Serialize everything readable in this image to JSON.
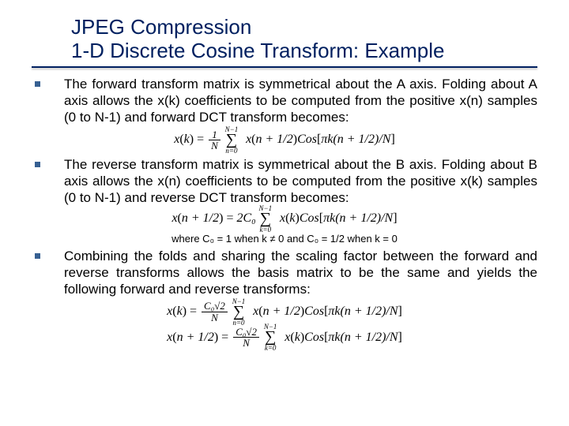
{
  "title": {
    "line1": "JPEG Compression",
    "line2": "1-D Discrete Cosine Transform: Example",
    "color": "#002060"
  },
  "bullets": [
    {
      "text": "The forward transform matrix is symmetrical about the A axis. Folding about A axis allows the x(k) coefficients to be computed from the positive x(n) samples (0 to N-1) and forward DCT transform becomes:"
    },
    {
      "text": "The reverse transform matrix is symmetrical about the B axis. Folding about B axis allows the x(n) coefficients to be computed from the positive x(k) samples (0 to N-1) and reverse DCT transform becomes:"
    },
    {
      "text": "Combining the folds and sharing the scaling factor between the forward and reverse transforms allows the basis matrix to be the same and yields the following forward and reverse transforms:"
    }
  ],
  "formulas": {
    "f1": {
      "lhs_var": "x",
      "lhs_arg": "k",
      "coef_num": "1",
      "coef_den": "N",
      "sum_lower": "n=0",
      "sum_upper": "N−1",
      "term_var": "x",
      "term_arg": "n + 1/2",
      "cos_arg": "πk(n + 1/2)/N"
    },
    "f2": {
      "lhs_var": "x",
      "lhs_arg": "n + 1/2",
      "coef": "2C₀",
      "sum_lower": "k=0",
      "sum_upper": "N−1",
      "term_var": "x",
      "term_arg": "k",
      "cos_arg": "πk(n + 1/2)/N"
    },
    "where": "where C₀ = 1 when k ≠ 0 and C₀ = 1/2 when k = 0",
    "f3": {
      "lhs_var": "x",
      "lhs_arg": "k",
      "coef_num": "C₀√2",
      "coef_den": "N",
      "sum_lower": "n=0",
      "sum_upper": "N−1",
      "term_var": "x",
      "term_arg": "n + 1/2",
      "cos_arg": "πk(n + 1/2)/N"
    },
    "f4": {
      "lhs_var": "x",
      "lhs_arg": "n + 1/2",
      "coef_num": "C₀√2",
      "coef_den": "N",
      "sum_lower": "k=0",
      "sum_upper": "N−1",
      "term_var": "x",
      "term_arg": "k",
      "cos_arg": "πk(n + 1/2)/N"
    }
  },
  "style": {
    "bullet_color": "#376092",
    "underline_color": "#002060",
    "body_fontsize": 17,
    "title_fontsize": 26,
    "formula_fontfamily": "Times New Roman"
  }
}
